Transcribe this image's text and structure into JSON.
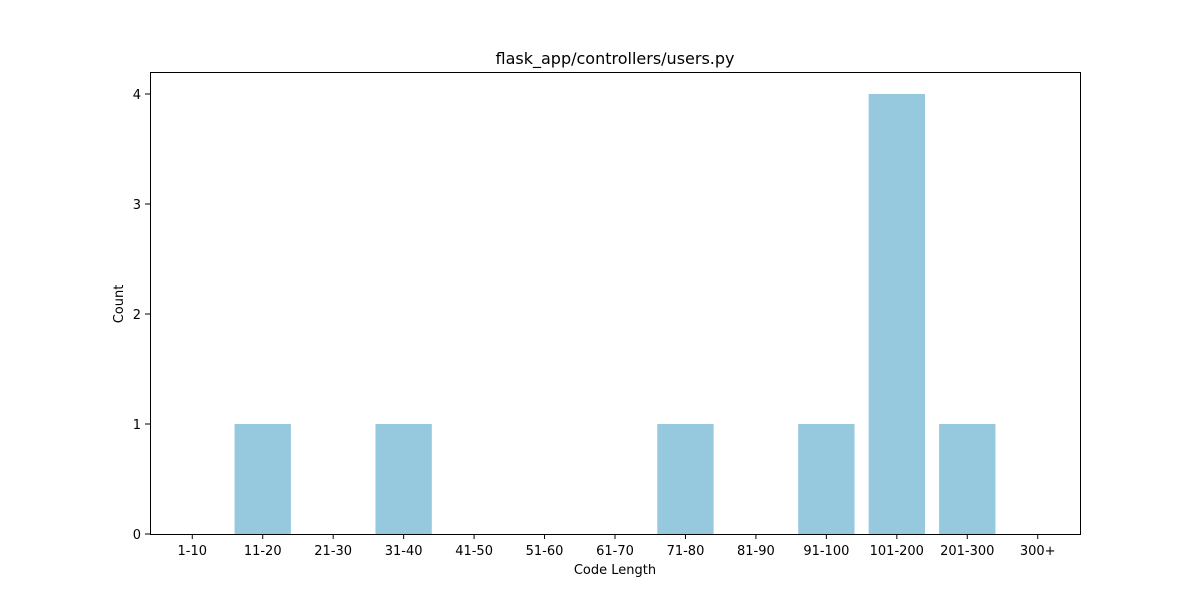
{
  "chart_data": {
    "type": "bar",
    "title": "flask_app/controllers/users.py",
    "xlabel": "Code Length",
    "ylabel": "Count",
    "categories": [
      "1-10",
      "11-20",
      "21-30",
      "31-40",
      "41-50",
      "51-60",
      "61-70",
      "71-80",
      "81-90",
      "91-100",
      "101-200",
      "201-300",
      "300+"
    ],
    "values": [
      0,
      1,
      0,
      1,
      0,
      0,
      0,
      1,
      0,
      1,
      4,
      1,
      0
    ],
    "ylim": [
      0,
      4.2
    ],
    "yticks": [
      0,
      1,
      2,
      3,
      4
    ],
    "bar_color": "#96c9de",
    "grid": false,
    "legend": "none"
  }
}
